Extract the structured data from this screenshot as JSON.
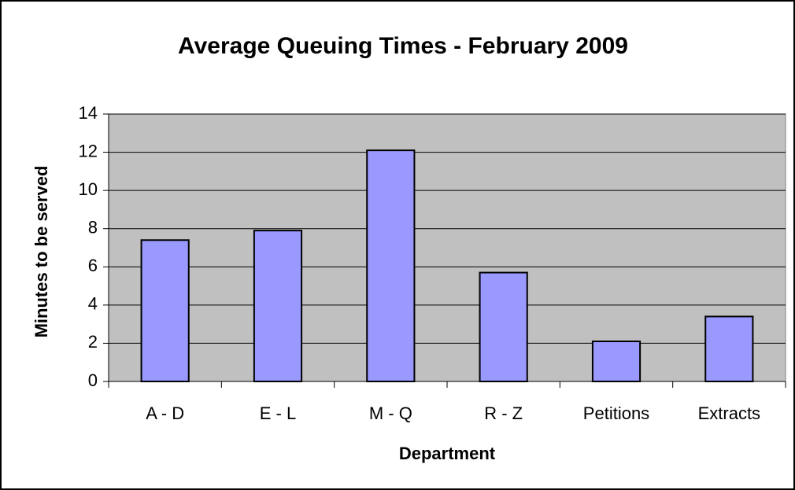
{
  "chart_data": {
    "type": "bar",
    "title": "Average Queuing Times - February 2009",
    "x_label": "Department",
    "y_label": "Minutes to be served",
    "categories": [
      "A - D",
      "E - L",
      "M - Q",
      "R - Z",
      "Petitions",
      "Extracts"
    ],
    "values": [
      7.4,
      7.9,
      12.1,
      5.7,
      2.1,
      3.4
    ],
    "color": "#9999ff",
    "ylim": [
      0,
      14
    ],
    "yticks": [
      0,
      2,
      4,
      6,
      8,
      10,
      12,
      14
    ],
    "grid": true
  }
}
